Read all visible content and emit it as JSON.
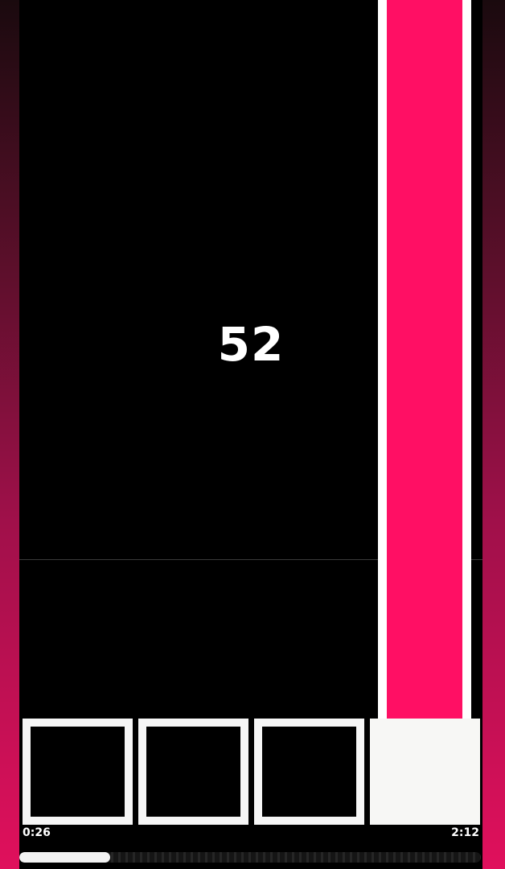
{
  "game": {
    "score": "52",
    "lanes": [
      {
        "lane": 1,
        "active": false
      },
      {
        "lane": 2,
        "active": false
      },
      {
        "lane": 3,
        "active": false
      },
      {
        "lane": 4,
        "active": true
      }
    ],
    "falling_note": {
      "lane": 4,
      "color": "#ff0f64"
    }
  },
  "playback": {
    "elapsed": "0:26",
    "total": "2:12",
    "progress": 0.197
  },
  "colors": {
    "accent": "#ff0f64",
    "background": "#000000",
    "pad_outline": "#f6f6f6"
  }
}
